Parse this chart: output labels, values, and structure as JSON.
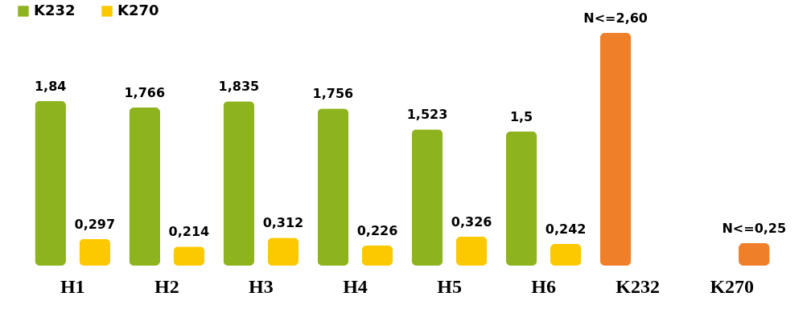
{
  "chart_data": {
    "type": "bar",
    "categories": [
      "H1",
      "H2",
      "H3",
      "H4",
      "H5",
      "H6",
      "K232",
      "K270"
    ],
    "series": [
      {
        "name": "K232",
        "color": "#8db31e",
        "values": [
          1.84,
          1.766,
          1.835,
          1.756,
          1.523,
          1.5,
          2.6,
          null
        ],
        "colors": [
          "#8db31e",
          "#8db31e",
          "#8db31e",
          "#8db31e",
          "#8db31e",
          "#8db31e",
          "#f07f2a",
          null
        ],
        "value_labels": [
          "1,84",
          "1,766",
          "1,835",
          "1,756",
          "1,523",
          "1,5",
          "N<=2,60",
          null
        ]
      },
      {
        "name": "K270",
        "color": "#fcc800",
        "values": [
          0.297,
          0.214,
          0.312,
          0.226,
          0.326,
          0.242,
          null,
          0.25
        ],
        "colors": [
          "#fcc800",
          "#fcc800",
          "#fcc800",
          "#fcc800",
          "#fcc800",
          "#fcc800",
          null,
          "#f07f2a"
        ],
        "value_labels": [
          "0,297",
          "0,214",
          "0,312",
          "0,226",
          "0,326",
          "0,242",
          null,
          "N<=0,25"
        ]
      }
    ],
    "legend": "top"
  }
}
